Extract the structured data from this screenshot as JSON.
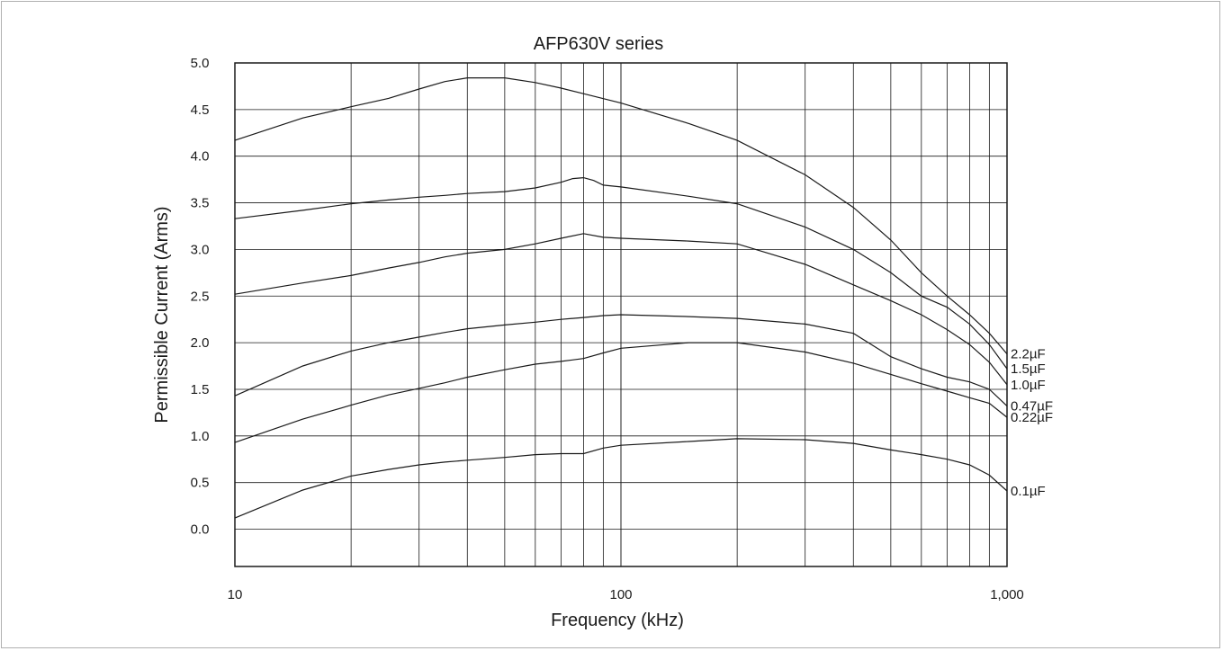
{
  "chart_data": {
    "type": "line",
    "title": "AFP630V series",
    "xlabel": "Frequency (kHz)",
    "ylabel": "Permissible Current (Arms)",
    "xscale": "log",
    "xlim": [
      10,
      1000
    ],
    "ylim": [
      -0.4,
      5.0
    ],
    "grid": true,
    "x_tick_values": [
      10,
      100,
      1000
    ],
    "x_tick_labels": [
      "10",
      "100",
      "1,000"
    ],
    "y_tick_values": [
      0.0,
      0.5,
      1.0,
      1.5,
      2.0,
      2.5,
      3.0,
      3.5,
      4.0,
      4.5,
      5.0
    ],
    "y_tick_labels": [
      "0.0",
      "0.5",
      "1.0",
      "1.5",
      "2.0",
      "2.5",
      "3.0",
      "3.5",
      "4.0",
      "4.5",
      "5.0"
    ],
    "series": [
      {
        "name": "2.2µF",
        "x": [
          10,
          15,
          20,
          25,
          30,
          35,
          40,
          50,
          60,
          70,
          80,
          100,
          150,
          200,
          300,
          400,
          500,
          600,
          700,
          800,
          900,
          1000
        ],
        "y": [
          4.17,
          4.41,
          4.53,
          4.62,
          4.72,
          4.8,
          4.84,
          4.84,
          4.79,
          4.73,
          4.67,
          4.57,
          4.35,
          4.17,
          3.8,
          3.45,
          3.1,
          2.75,
          2.5,
          2.3,
          2.1,
          1.88
        ]
      },
      {
        "name": "1.5µF",
        "x": [
          10,
          15,
          20,
          25,
          30,
          35,
          40,
          50,
          60,
          70,
          75,
          80,
          85,
          90,
          100,
          150,
          200,
          300,
          400,
          500,
          600,
          700,
          800,
          900,
          1000
        ],
        "y": [
          3.33,
          3.42,
          3.49,
          3.53,
          3.56,
          3.58,
          3.6,
          3.62,
          3.66,
          3.72,
          3.76,
          3.77,
          3.74,
          3.69,
          3.67,
          3.57,
          3.49,
          3.24,
          3.0,
          2.75,
          2.5,
          2.38,
          2.2,
          1.98,
          1.72
        ]
      },
      {
        "name": "1.0µF",
        "x": [
          10,
          15,
          20,
          25,
          30,
          35,
          40,
          50,
          60,
          70,
          80,
          90,
          100,
          150,
          200,
          300,
          400,
          500,
          600,
          700,
          800,
          900,
          1000
        ],
        "y": [
          2.52,
          2.64,
          2.72,
          2.8,
          2.86,
          2.92,
          2.96,
          3.0,
          3.06,
          3.12,
          3.17,
          3.13,
          3.12,
          3.09,
          3.06,
          2.84,
          2.62,
          2.45,
          2.3,
          2.14,
          1.98,
          1.79,
          1.55
        ]
      },
      {
        "name": "0.47µF",
        "x": [
          10,
          15,
          20,
          25,
          30,
          35,
          40,
          50,
          60,
          70,
          80,
          90,
          100,
          150,
          200,
          300,
          400,
          500,
          600,
          700,
          800,
          900,
          1000
        ],
        "y": [
          1.43,
          1.75,
          1.91,
          2.0,
          2.06,
          2.11,
          2.15,
          2.19,
          2.22,
          2.25,
          2.27,
          2.29,
          2.3,
          2.28,
          2.26,
          2.2,
          2.1,
          1.85,
          1.72,
          1.63,
          1.58,
          1.5,
          1.32
        ]
      },
      {
        "name": "0.22µF",
        "x": [
          10,
          15,
          20,
          25,
          30,
          35,
          40,
          50,
          60,
          70,
          80,
          90,
          100,
          150,
          200,
          300,
          400,
          500,
          600,
          700,
          800,
          900,
          1000
        ],
        "y": [
          0.93,
          1.18,
          1.33,
          1.44,
          1.51,
          1.57,
          1.63,
          1.71,
          1.77,
          1.8,
          1.83,
          1.89,
          1.94,
          2.0,
          2.0,
          1.9,
          1.78,
          1.66,
          1.56,
          1.48,
          1.41,
          1.35,
          1.2
        ]
      },
      {
        "name": "0.1µF",
        "x": [
          10,
          15,
          20,
          25,
          30,
          35,
          40,
          50,
          60,
          70,
          80,
          90,
          100,
          150,
          200,
          300,
          400,
          500,
          600,
          700,
          800,
          900,
          1000
        ],
        "y": [
          0.12,
          0.42,
          0.57,
          0.64,
          0.69,
          0.72,
          0.74,
          0.77,
          0.8,
          0.81,
          0.81,
          0.87,
          0.9,
          0.94,
          0.97,
          0.96,
          0.92,
          0.85,
          0.8,
          0.75,
          0.69,
          0.58,
          0.41
        ]
      }
    ]
  }
}
